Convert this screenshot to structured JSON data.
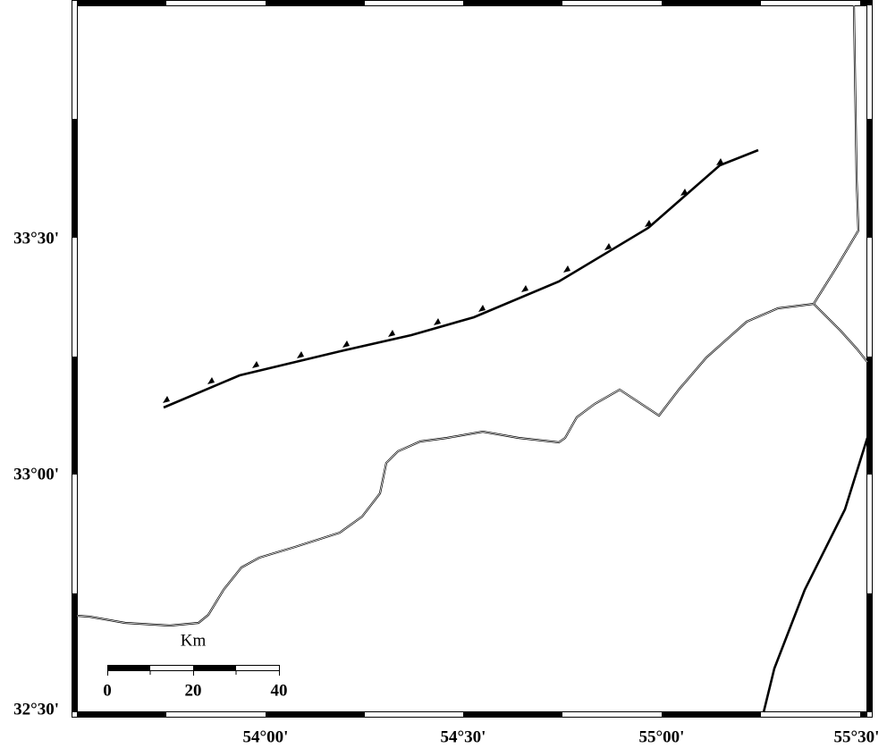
{
  "map": {
    "lat_labels": [
      "33°30'",
      "33°00'",
      "32°30'"
    ],
    "lon_labels": [
      "54°00'",
      "54°30'",
      "55°00'",
      "55°30'"
    ],
    "scale_bar": {
      "unit": "Km",
      "labels": [
        "0",
        "20",
        "40"
      ]
    }
  }
}
